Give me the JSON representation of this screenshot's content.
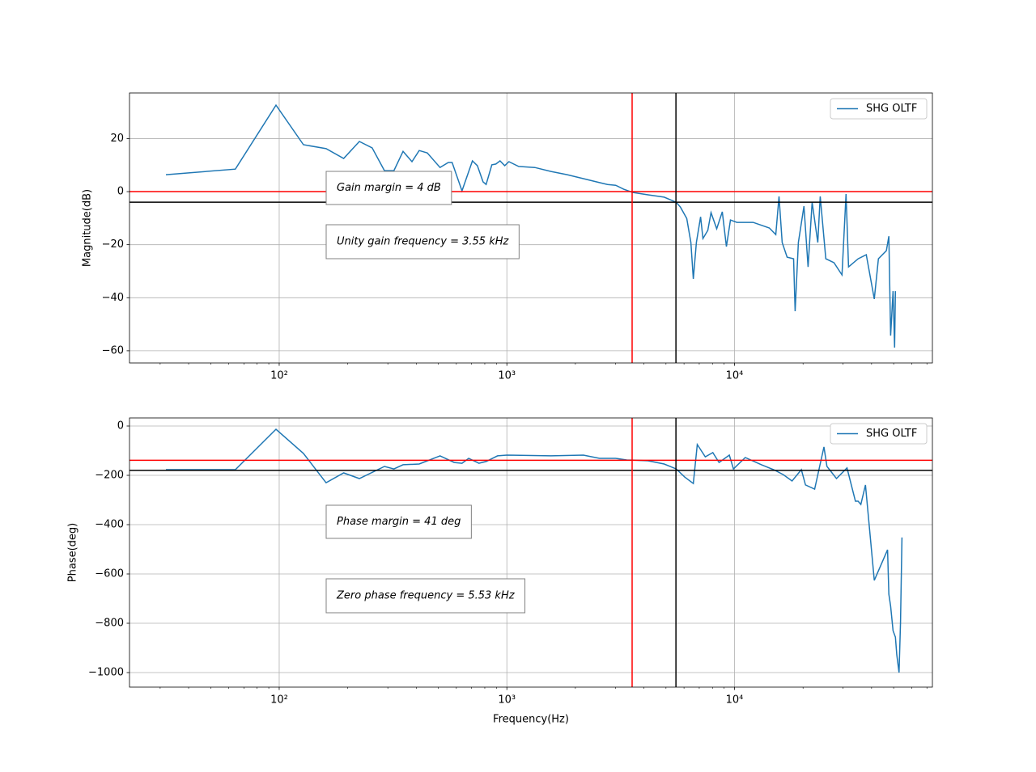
{
  "chart_data": [
    {
      "type": "line",
      "ylabel": "Magnitude(dB)",
      "xscale": "log",
      "grid": true,
      "legend": "upper right",
      "xlim": [
        22,
        74000
      ],
      "ylim": [
        37.2,
        -64.6
      ],
      "xticks": [
        {
          "value": 100,
          "label": "10²"
        },
        {
          "value": 1000,
          "label": "10³"
        },
        {
          "value": 10000,
          "label": "10⁴"
        }
      ],
      "yticks": [
        20,
        0,
        {
          "value": -20,
          "label": "−20"
        },
        {
          "value": -40,
          "label": "−40"
        },
        {
          "value": -60,
          "label": "−60"
        }
      ],
      "x": [
        31.8,
        64.2,
        96.8,
        127.8,
        160.7,
        192,
        225,
        256,
        290,
        319,
        350,
        383,
        412,
        447,
        509,
        553,
        575,
        635,
        706,
        742,
        786,
        811,
        859,
        895,
        933,
        979,
        1021,
        1127,
        1327,
        1563,
        1841,
        2168,
        2553,
        2768,
        3006,
        3260,
        3565,
        4168,
        4909,
        5546,
        5782,
        6170,
        6430,
        6590,
        6800,
        7095,
        7265,
        7630,
        7885,
        8350,
        8840,
        9210,
        9600,
        10250,
        12070,
        14220,
        15180,
        15680,
        16200,
        17020,
        18170,
        18460,
        19080,
        20190,
        21040,
        21930,
        23220,
        23790,
        25180,
        27340,
        29650,
        30900,
        31680,
        34920,
        37900,
        41120,
        42850,
        46450,
        47640,
        48500,
        49700,
        50500,
        50900
      ],
      "series": [
        {
          "name": "SHG OLTF",
          "color": "#1f77b4",
          "values": [
            6.4,
            8.5,
            32.6,
            17.7,
            16.2,
            12.5,
            18.9,
            16.5,
            7.9,
            7.9,
            15.2,
            11.3,
            15.5,
            14.6,
            9.1,
            11.0,
            11.0,
            0.3,
            11.6,
            9.8,
            3.7,
            2.7,
            10.1,
            10.4,
            11.6,
            9.8,
            11.3,
            9.5,
            9.1,
            7.6,
            6.4,
            4.9,
            3.4,
            2.7,
            2.4,
            0.9,
            -0.3,
            -1.2,
            -2.1,
            -4.0,
            -5.8,
            -10.1,
            -19.2,
            -32.9,
            -19.2,
            -9.5,
            -17.7,
            -14.6,
            -7.9,
            -14,
            -7.6,
            -20.7,
            -10.7,
            -11.6,
            -11.6,
            -13.7,
            -16.2,
            -1.8,
            -19.2,
            -24.7,
            -25.3,
            -45.1,
            -19.2,
            -5.5,
            -28.4,
            -4.0,
            -19.2,
            -1.8,
            -25.3,
            -26.8,
            -31.4,
            -0.9,
            -28.4,
            -25.3,
            -23.8,
            -40.5,
            -25.3,
            -22.3,
            -16.8,
            -54.3,
            -37.5,
            -58.8,
            -37.5
          ]
        }
      ],
      "hlines": [
        {
          "value": 0,
          "color": "red"
        },
        {
          "value": -4,
          "color": "black"
        }
      ],
      "vlines": [
        {
          "value": 3550,
          "color": "red"
        },
        {
          "value": 5530,
          "color": "black"
        }
      ],
      "annotations": [
        "Gain margin = 4 dB",
        "Unity gain frequency = 3.55 kHz"
      ]
    },
    {
      "type": "line",
      "xlabel": "Frequency(Hz)",
      "ylabel": "Phase(deg)",
      "xscale": "log",
      "grid": true,
      "legend": "upper right",
      "xlim": [
        22,
        74000
      ],
      "ylim": [
        32.8,
        -1059
      ],
      "xticks": [
        {
          "value": 100,
          "label": "10²"
        },
        {
          "value": 1000,
          "label": "10³"
        },
        {
          "value": 10000,
          "label": "10⁴"
        }
      ],
      "yticks": [
        0,
        {
          "value": -200,
          "label": "−200"
        },
        {
          "value": -400,
          "label": "−400"
        },
        {
          "value": -600,
          "label": "−600"
        },
        {
          "value": -800,
          "label": "−800"
        },
        {
          "value": -1000,
          "label": "−1000"
        }
      ],
      "x": [
        31.8,
        64.2,
        96.8,
        127.8,
        160.7,
        192,
        225,
        290,
        319,
        350,
        412,
        509,
        587,
        635,
        680,
        754,
        811,
        910,
        1000,
        1563,
        2168,
        2553,
        3006,
        3380,
        3565,
        4168,
        4909,
        5546,
        6040,
        6590,
        6860,
        7440,
        7440,
        8030,
        8550,
        9490,
        9890,
        11150,
        13130,
        14860,
        16370,
        17900,
        19670,
        20500,
        22480,
        24710,
        25460,
        28060,
        31190,
        33980,
        34900,
        35890,
        37600,
        41120,
        47000,
        47640,
        48500,
        49700,
        50900,
        51630,
        52800,
        53600,
        54400
      ],
      "series": [
        {
          "name": "SHG OLTF",
          "color": "#1f77b4",
          "values": [
            -177,
            -177,
            -13,
            -111,
            -230,
            -190,
            -213,
            -164,
            -174,
            -157,
            -154,
            -121,
            -148,
            -151,
            -131,
            -151,
            -144,
            -121,
            -118,
            -121,
            -118,
            -131,
            -131,
            -138,
            -138,
            -141,
            -154,
            -174,
            -207,
            -233,
            -75,
            -125,
            -125,
            -108,
            -148,
            -118,
            -174,
            -128,
            -157,
            -177,
            -197,
            -223,
            -177,
            -239,
            -256,
            -85,
            -164,
            -213,
            -170,
            -305,
            -305,
            -318,
            -239,
            -626,
            -502,
            -682,
            -731,
            -830,
            -856,
            -928,
            -1000,
            -797,
            -452
          ]
        }
      ],
      "hlines": [
        {
          "value": -139,
          "color": "red"
        },
        {
          "value": -180,
          "color": "black"
        }
      ],
      "vlines": [
        {
          "value": 3550,
          "color": "red"
        },
        {
          "value": 5530,
          "color": "black"
        }
      ],
      "annotations": [
        "Phase margin = 41 deg",
        "Zero phase frequency = 5.53 kHz"
      ]
    }
  ]
}
